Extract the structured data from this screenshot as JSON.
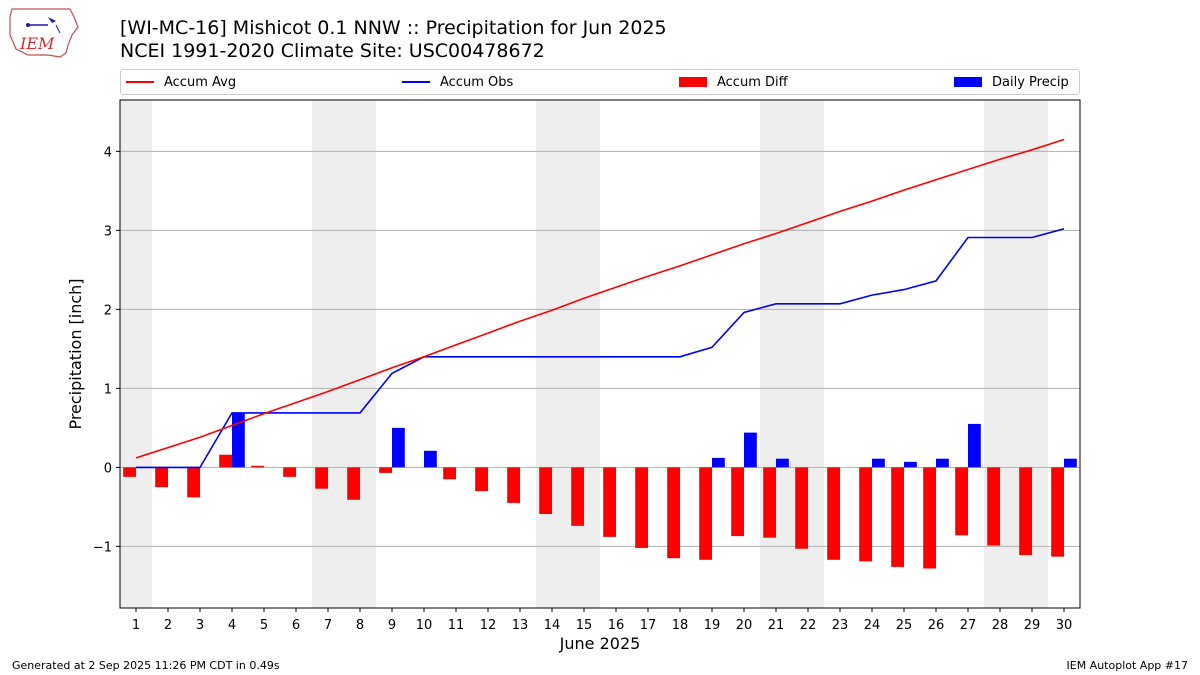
{
  "header": {
    "title_line1": "[WI-MC-16] Mishicot 0.1 NNW :: Precipitation for Jun 2025",
    "title_line2": "NCEI 1991-2020 Climate Site: USC00478672",
    "logo_text": "IEM"
  },
  "footer": {
    "left": "Generated at 2 Sep 2025 11:26 PM CDT in 0.49s",
    "right": "IEM Autoplot App #17"
  },
  "colors": {
    "accum_avg": "#ff0000",
    "accum_obs": "#0000ff",
    "accum_diff": "#ff0000",
    "daily_precip": "#0000ff",
    "weekend_shade": "#eeeeee"
  },
  "chart_data": {
    "type": "bar",
    "xlabel": "June 2025",
    "ylabel": "Precipitation [inch]",
    "ylim": [
      -1.78,
      4.65
    ],
    "yticks": [
      -1,
      0,
      1,
      2,
      3,
      4
    ],
    "ytick_labels": [
      "−1",
      "0",
      "1",
      "2",
      "3",
      "4"
    ],
    "grid": "horizontal",
    "legend_position": "top",
    "x": [
      1,
      2,
      3,
      4,
      5,
      6,
      7,
      8,
      9,
      10,
      11,
      12,
      13,
      14,
      15,
      16,
      17,
      18,
      19,
      20,
      21,
      22,
      23,
      24,
      25,
      26,
      27,
      28,
      29,
      30
    ],
    "weekend_shading": [
      [
        1,
        1
      ],
      [
        7,
        8
      ],
      [
        14,
        15
      ],
      [
        21,
        22
      ],
      [
        28,
        29
      ]
    ],
    "series": [
      {
        "name": "Accum Avg",
        "kind": "line",
        "values": [
          0.12,
          0.25,
          0.38,
          0.53,
          0.68,
          0.82,
          0.96,
          1.11,
          1.26,
          1.4,
          1.55,
          1.7,
          1.85,
          1.99,
          2.14,
          2.28,
          2.42,
          2.55,
          2.69,
          2.83,
          2.96,
          3.1,
          3.24,
          3.37,
          3.51,
          3.64,
          3.77,
          3.9,
          4.02,
          4.15
        ]
      },
      {
        "name": "Accum Obs",
        "kind": "line",
        "values": [
          0.0,
          0.0,
          0.0,
          0.69,
          0.69,
          0.69,
          0.69,
          0.69,
          1.19,
          1.4,
          1.4,
          1.4,
          1.4,
          1.4,
          1.4,
          1.4,
          1.4,
          1.4,
          1.52,
          1.96,
          2.07,
          2.07,
          2.07,
          2.18,
          2.25,
          2.36,
          2.91,
          2.91,
          2.91,
          3.02
        ]
      },
      {
        "name": "Accum Diff",
        "kind": "bar",
        "values": [
          -0.12,
          -0.25,
          -0.38,
          0.16,
          0.02,
          -0.12,
          -0.27,
          -0.41,
          -0.07,
          0.0,
          -0.15,
          -0.3,
          -0.45,
          -0.59,
          -0.74,
          -0.88,
          -1.02,
          -1.15,
          -1.17,
          -0.87,
          -0.89,
          -1.03,
          -1.17,
          -1.19,
          -1.26,
          -1.28,
          -0.86,
          -0.99,
          -1.11,
          -1.13
        ]
      },
      {
        "name": "Daily Precip",
        "kind": "bar",
        "values": [
          0.0,
          0.0,
          0.0,
          0.69,
          0.0,
          0.0,
          0.0,
          0.0,
          0.5,
          0.21,
          0.0,
          0.0,
          0.0,
          0.0,
          0.0,
          0.0,
          0.0,
          0.0,
          0.12,
          0.44,
          0.11,
          0.0,
          0.0,
          0.11,
          0.07,
          0.11,
          0.55,
          0.0,
          0.0,
          0.11
        ]
      }
    ]
  }
}
